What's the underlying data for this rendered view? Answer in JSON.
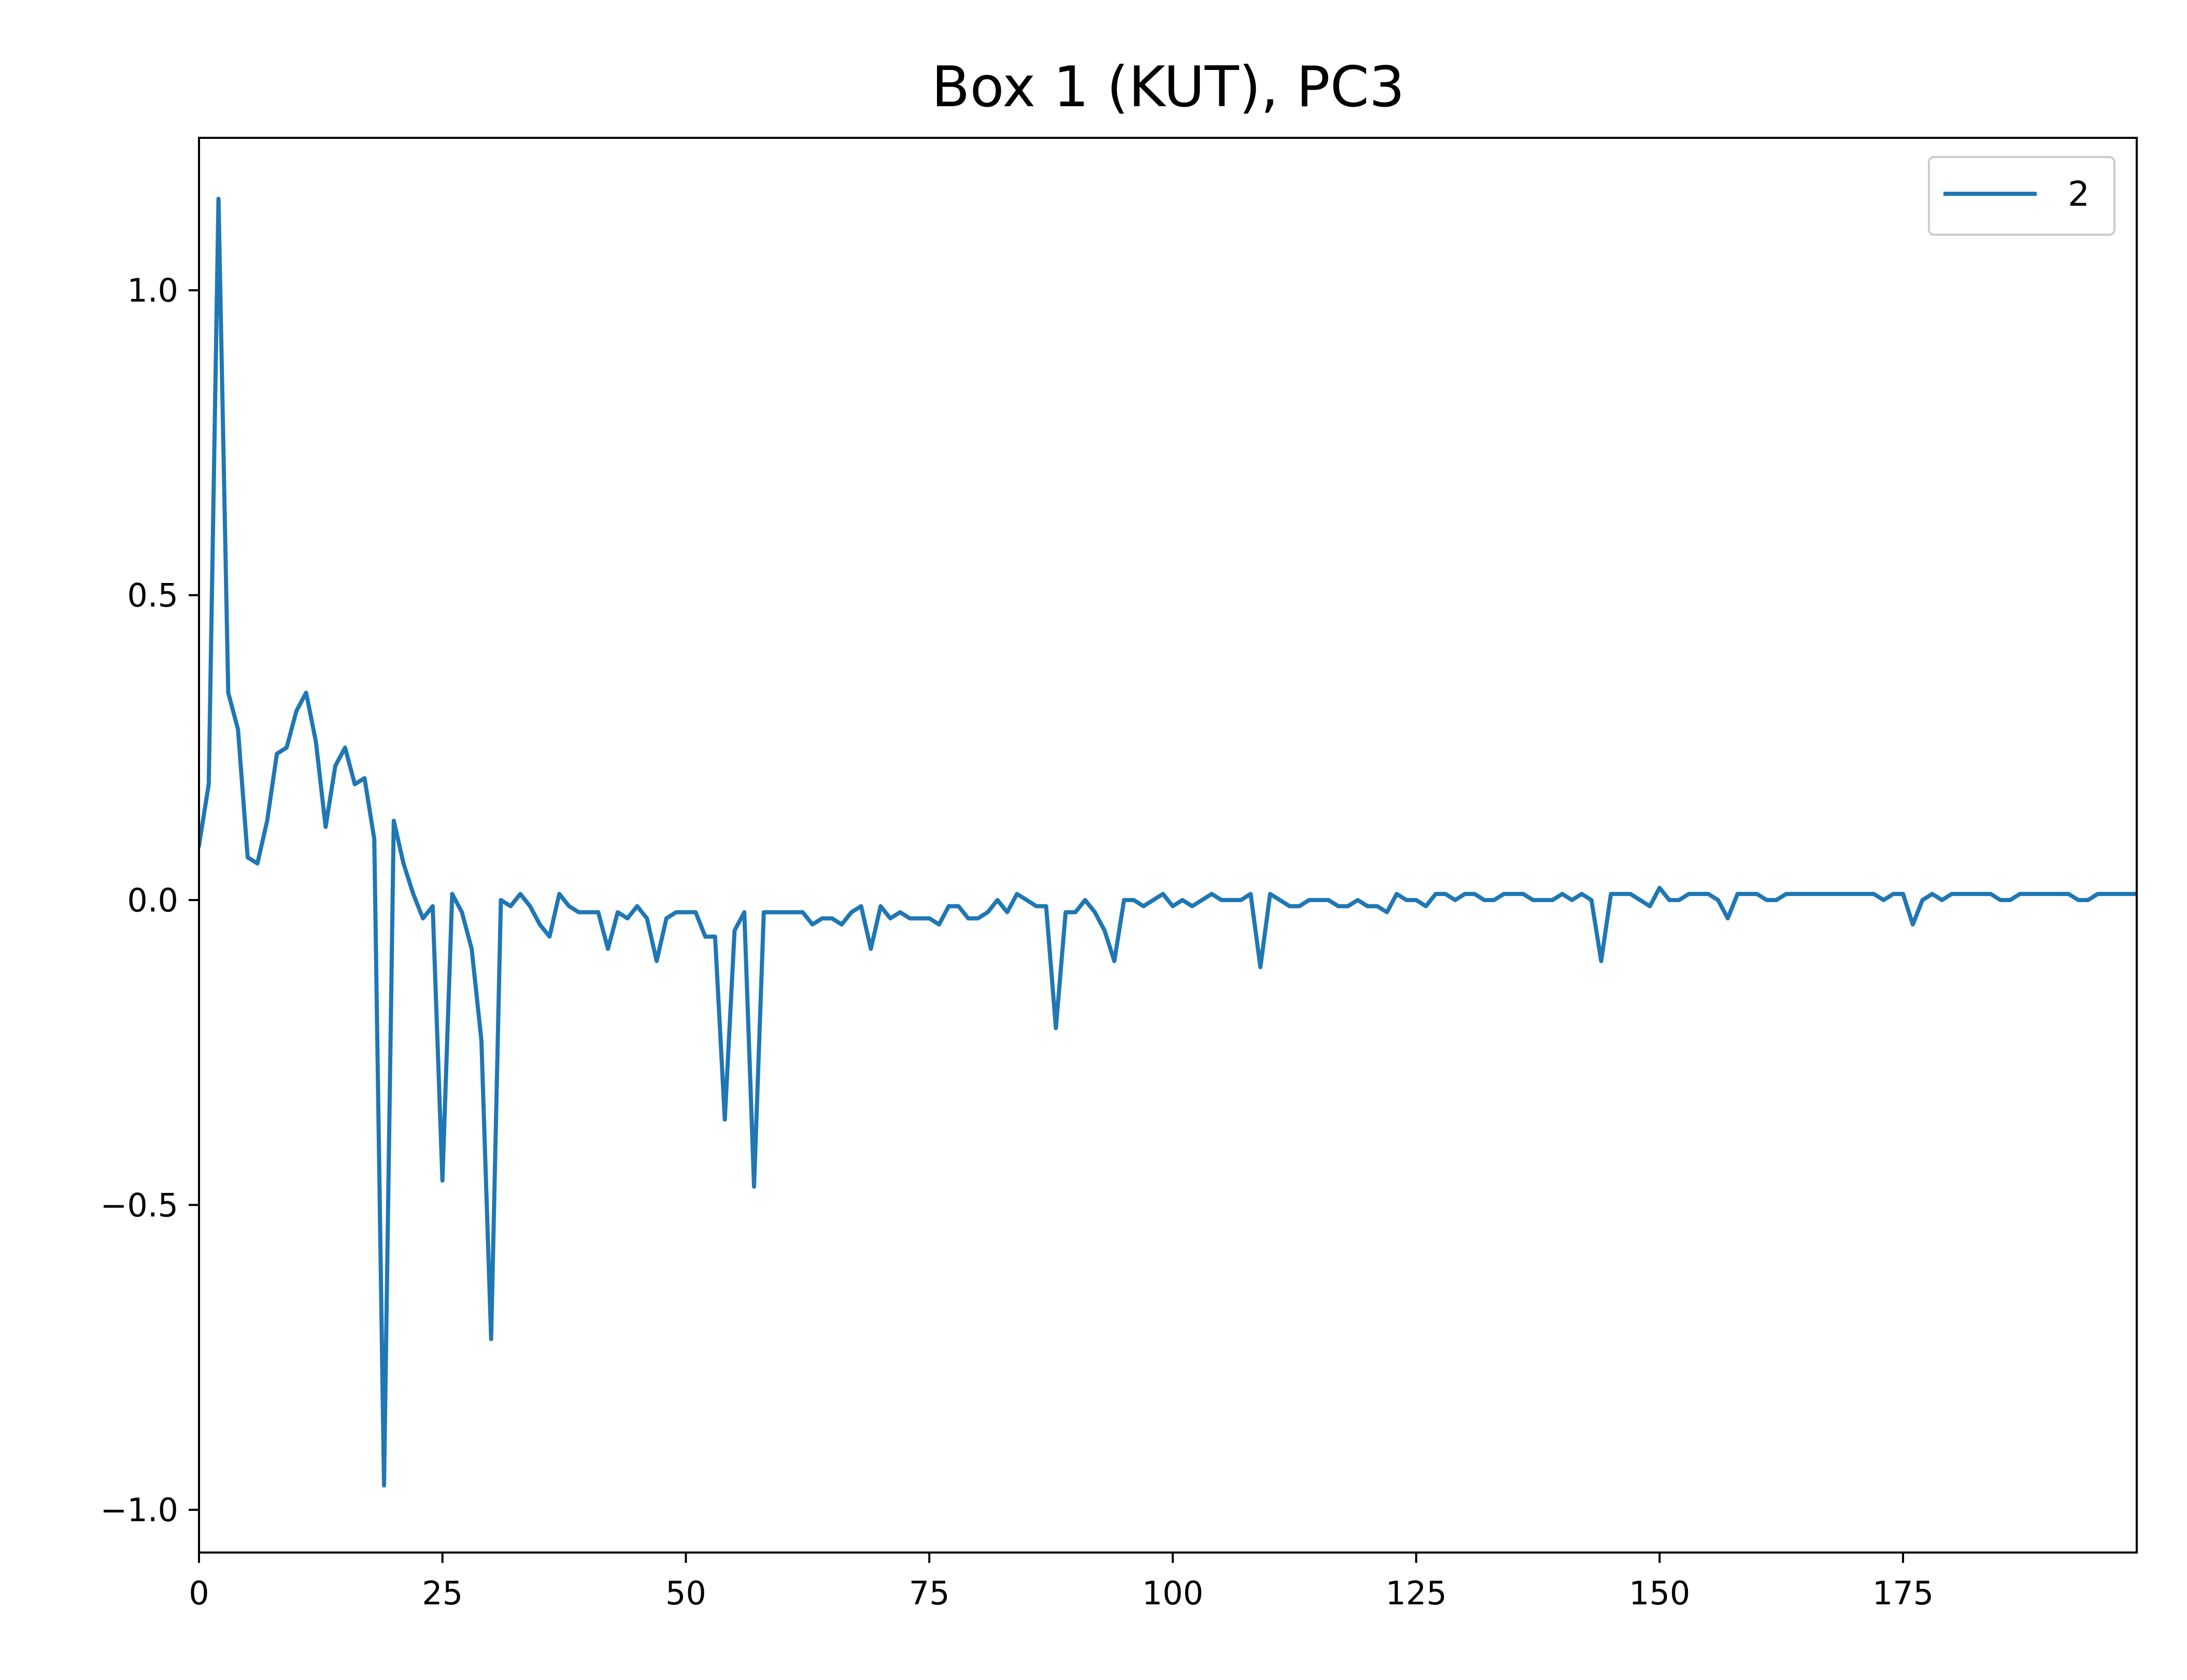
{
  "chart_data": {
    "type": "line",
    "title": "Box 1 (KUT), PC3",
    "xlabel": "",
    "ylabel": "",
    "xlim": [
      0,
      199
    ],
    "ylim": [
      -1.07,
      1.25
    ],
    "x_ticks": [
      0,
      25,
      50,
      75,
      100,
      125,
      150,
      175
    ],
    "x_tick_labels": [
      "0",
      "25",
      "50",
      "75",
      "100",
      "125",
      "150",
      "175"
    ],
    "y_ticks": [
      1.0,
      0.5,
      0.0,
      -0.5,
      -1.0
    ],
    "y_tick_labels": [
      "1.0",
      "0.5",
      "0.0",
      "−0.5",
      "−1.0"
    ],
    "grid": false,
    "legend_position": "top-right",
    "series": [
      {
        "name": "2",
        "color": "#1f77b4",
        "x_start": 0,
        "x_step": 1,
        "values": [
          0.09,
          0.19,
          1.15,
          0.34,
          0.28,
          0.07,
          0.06,
          0.13,
          0.24,
          0.25,
          0.31,
          0.34,
          0.26,
          0.12,
          0.22,
          0.25,
          0.19,
          0.2,
          0.1,
          -0.96,
          0.13,
          0.06,
          0.01,
          -0.03,
          -0.01,
          -0.46,
          0.01,
          -0.02,
          -0.08,
          -0.23,
          -0.72,
          0.0,
          -0.01,
          0.01,
          -0.01,
          -0.04,
          -0.06,
          0.01,
          -0.01,
          -0.02,
          -0.02,
          -0.02,
          -0.08,
          -0.02,
          -0.03,
          -0.01,
          -0.03,
          -0.1,
          -0.03,
          -0.02,
          -0.02,
          -0.02,
          -0.06,
          -0.06,
          -0.36,
          -0.05,
          -0.02,
          -0.47,
          -0.02,
          -0.02,
          -0.02,
          -0.02,
          -0.02,
          -0.04,
          -0.03,
          -0.03,
          -0.04,
          -0.02,
          -0.01,
          -0.08,
          -0.01,
          -0.03,
          -0.02,
          -0.03,
          -0.03,
          -0.03,
          -0.04,
          -0.01,
          -0.01,
          -0.03,
          -0.03,
          -0.02,
          0.0,
          -0.02,
          0.01,
          0.0,
          -0.01,
          -0.01,
          -0.21,
          -0.02,
          -0.02,
          0.0,
          -0.02,
          -0.05,
          -0.1,
          0.0,
          0.0,
          -0.01,
          0.0,
          0.01,
          -0.01,
          0.0,
          -0.01,
          0.0,
          0.01,
          0.0,
          0.0,
          0.0,
          0.01,
          -0.11,
          0.01,
          0.0,
          -0.01,
          -0.01,
          0.0,
          0.0,
          0.0,
          -0.01,
          -0.01,
          0.0,
          -0.01,
          -0.01,
          -0.02,
          0.01,
          0.0,
          0.0,
          -0.01,
          0.01,
          0.01,
          0.0,
          0.01,
          0.01,
          0.0,
          0.0,
          0.01,
          0.01,
          0.01,
          0.0,
          0.0,
          0.0,
          0.01,
          0.0,
          0.01,
          0.0,
          -0.1,
          0.01,
          0.01,
          0.01,
          0.0,
          -0.01,
          0.02,
          0.0,
          0.0,
          0.01,
          0.01,
          0.01,
          0.0,
          -0.03,
          0.01,
          0.01,
          0.01,
          0.0,
          0.0,
          0.01,
          0.01,
          0.01,
          0.01,
          0.01,
          0.01,
          0.01,
          0.01,
          0.01,
          0.01,
          0.0,
          0.01,
          0.01,
          -0.04,
          0.0,
          0.01,
          0.0,
          0.01,
          0.01,
          0.01,
          0.01,
          0.01,
          0.0,
          0.0,
          0.01,
          0.01,
          0.01,
          0.01,
          0.01,
          0.01,
          0.0,
          0.0,
          0.01,
          0.01,
          0.01,
          0.01,
          0.01
        ]
      }
    ]
  }
}
